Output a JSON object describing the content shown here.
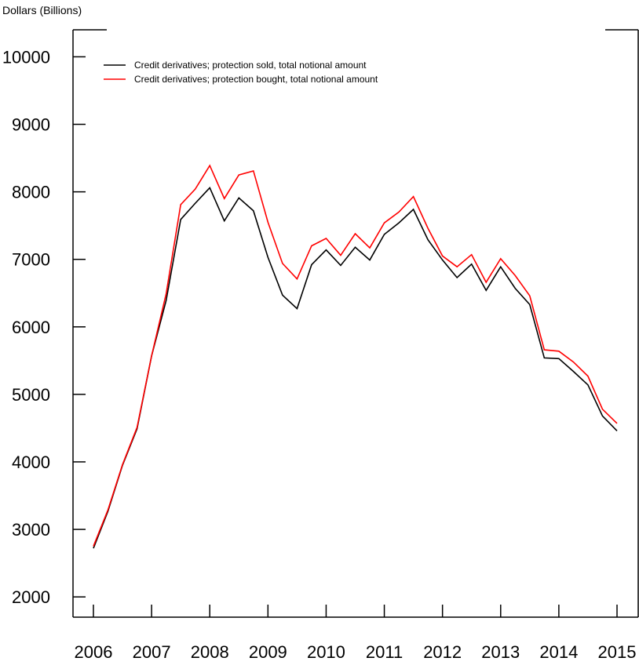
{
  "chart_data": {
    "type": "line",
    "ylabel": "Dollars (Billions)",
    "ylim": [
      1700,
      10400
    ],
    "xlim": [
      2006,
      2015
    ],
    "x_ticks": [
      "2006",
      "2007",
      "2008",
      "2009",
      "2010",
      "2011",
      "2012",
      "2013",
      "2014",
      "2015"
    ],
    "y_ticks": [
      "2000",
      "3000",
      "4000",
      "5000",
      "6000",
      "7000",
      "8000",
      "9000",
      "10000"
    ],
    "legend_position": "top-left",
    "x": [
      2006.0,
      2006.25,
      2006.5,
      2006.75,
      2007.0,
      2007.25,
      2007.5,
      2007.75,
      2008.0,
      2008.25,
      2008.5,
      2008.75,
      2009.0,
      2009.25,
      2009.5,
      2009.75,
      2010.0,
      2010.25,
      2010.5,
      2010.75,
      2011.0,
      2011.25,
      2011.5,
      2011.75,
      2012.0,
      2012.25,
      2012.5,
      2012.75,
      2013.0,
      2013.25,
      2013.5,
      2013.75,
      2014.0,
      2014.25,
      2014.5,
      2014.75,
      2015.0
    ],
    "series": [
      {
        "name": "Credit derivatives; protection sold, total notional amount",
        "color": "#000000",
        "values": [
          2720,
          3270,
          3950,
          4490,
          5570,
          6390,
          7590,
          7830,
          8060,
          7570,
          7910,
          7720,
          7030,
          6470,
          6270,
          6920,
          7140,
          6910,
          7180,
          6990,
          7370,
          7540,
          7740,
          7290,
          6990,
          6730,
          6930,
          6540,
          6890,
          6570,
          6330,
          5540,
          5530,
          5340,
          5140,
          4680,
          4460
        ]
      },
      {
        "name": "Credit derivatives; protection bought, total notional amount",
        "color": "#ff0000",
        "values": [
          2750,
          3290,
          3960,
          4510,
          5570,
          6490,
          7810,
          8040,
          8390,
          7900,
          8250,
          8310,
          7550,
          6940,
          6710,
          7200,
          7310,
          7060,
          7380,
          7170,
          7540,
          7700,
          7930,
          7460,
          7050,
          6890,
          7070,
          6660,
          7010,
          6760,
          6460,
          5660,
          5640,
          5480,
          5270,
          4780,
          4570
        ]
      }
    ]
  }
}
